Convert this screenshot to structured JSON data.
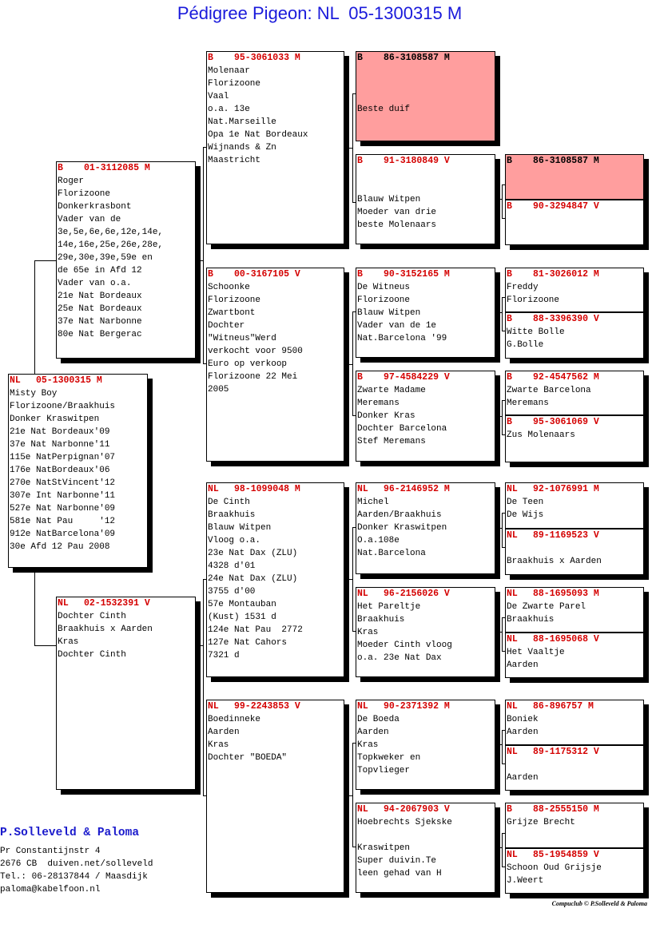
{
  "title": "Pédigree Pigeon: NL  05-1300315 M",
  "highlight_color": "#ff9e9e",
  "header_color": "#d40000",
  "pedigree": {
    "subject": {
      "country": "NL",
      "ring": "05-1300315",
      "sex": "M",
      "lines": [
        "Misty Boy",
        "Florizoone/Braakhuis",
        "Donker Kraswitpen",
        "21e Nat Bordeaux'09",
        "37e Nat Narbonne'11",
        "115e NatPerpignan'07",
        "176e NatBordeaux'06",
        "270e NatStVincent'12",
        "307e Int Narbonne'11",
        "527e Nat Narbonne'09",
        "581e Nat Pau     '12",
        "912e NatBarcelona'09",
        "30e Afd 12 Pau 2008"
      ]
    },
    "sire": {
      "country": "B",
      "ring": "01-3112085",
      "sex": "M",
      "lines": [
        "Roger",
        "Florizoone",
        "Donkerkrasbont",
        "Vader van de",
        "3e,5e,6e,6e,12e,14e,",
        "14e,16e,25e,26e,28e,",
        "29e,30e,39e,59e en",
        "de 65e in Afd 12",
        "Vader van o.a.",
        "21e Nat Bordeaux",
        "25e Nat Bordeaux",
        "37e Nat Narbonne",
        "80e Nat Bergerac"
      ]
    },
    "dam": {
      "country": "NL",
      "ring": "02-1532391",
      "sex": "V",
      "lines": [
        "Dochter Cinth",
        "Braakhuis x Aarden",
        "Kras",
        "Dochter Cinth"
      ]
    },
    "gen2": [
      {
        "country": "B",
        "ring": "95-3061033",
        "sex": "M",
        "lines": [
          "Molenaar",
          "Florizoone",
          "Vaal",
          "o.a. 13e",
          "Nat.Marseille",
          "Opa 1e Nat Bordeaux",
          "Wijnands & Zn",
          "Maastricht"
        ]
      },
      {
        "country": "B",
        "ring": "00-3167105",
        "sex": "V",
        "lines": [
          "Schoonke",
          "Florizoone",
          "Zwartbont",
          "Dochter",
          "\"Witneus\"Werd",
          "verkocht voor 9500",
          "Euro op verkoop",
          "Florizoone 22 Mei",
          "2005"
        ]
      },
      {
        "country": "NL",
        "ring": "98-1099048",
        "sex": "M",
        "lines": [
          "De Cinth",
          "Braakhuis",
          "Blauw Witpen",
          "Vloog o.a.",
          "23e Nat Dax (ZLU)",
          "4328 d'01",
          "24e Nat Dax (ZLU)",
          "3755 d'00",
          "57e Montauban",
          "(Kust) 1531 d",
          "124e Nat Pau  2772",
          "127e Nat Cahors",
          "7321 d"
        ]
      },
      {
        "country": "NL",
        "ring": "99-2243853",
        "sex": "V",
        "lines": [
          "Boedinneke",
          "Aarden",
          "Kras",
          "Dochter \"BOEDA\""
        ]
      }
    ],
    "gen3": [
      {
        "country": "B",
        "ring": "86-3108587",
        "sex": "M",
        "highlight": true,
        "lines": [
          "",
          "",
          "",
          "Beste duif"
        ]
      },
      {
        "country": "B",
        "ring": "91-3180849",
        "sex": "V",
        "lines": [
          "",
          "",
          "Blauw Witpen",
          "Moeder van drie",
          "beste Molenaars"
        ]
      },
      {
        "country": "B",
        "ring": "90-3152165",
        "sex": "M",
        "lines": [
          "De Witneus",
          "Florizoone",
          "Blauw Witpen",
          "Vader van de 1e",
          "Nat.Barcelona '99"
        ]
      },
      {
        "country": "B",
        "ring": "97-4584229",
        "sex": "V",
        "lines": [
          "Zwarte Madame",
          "Meremans",
          "Donker Kras",
          "Dochter Barcelona",
          "Stef Meremans"
        ]
      },
      {
        "country": "NL",
        "ring": "96-2146952",
        "sex": "M",
        "lines": [
          "Michel",
          "Aarden/Braakhuis",
          "Donker Kraswitpen",
          "O.a.108e",
          "Nat.Barcelona"
        ]
      },
      {
        "country": "NL",
        "ring": "96-2156026",
        "sex": "V",
        "lines": [
          "Het Pareltje",
          "Braakhuis",
          "Kras",
          "Moeder Cinth vloog",
          "o.a. 23e Nat Dax"
        ]
      },
      {
        "country": "NL",
        "ring": "90-2371392",
        "sex": "M",
        "lines": [
          "De Boeda",
          "Aarden",
          "Kras",
          "Topkweker en",
          "Topvlieger"
        ]
      },
      {
        "country": "NL",
        "ring": "94-2067903",
        "sex": "V",
        "lines": [
          "Hoebrechts Sjekske",
          "",
          "Kraswitpen",
          "Super duivin.Te",
          "leen gehad van H"
        ]
      }
    ],
    "gen4": [
      {
        "country": "B",
        "ring": "86-3108587",
        "sex": "M",
        "highlight": true,
        "lines": []
      },
      {
        "country": "B",
        "ring": "90-3294847",
        "sex": "V",
        "lines": []
      },
      {
        "country": "B",
        "ring": "81-3026012",
        "sex": "M",
        "lines": [
          "Freddy",
          "Florizoone"
        ]
      },
      {
        "country": "B",
        "ring": "88-3396390",
        "sex": "V",
        "lines": [
          "Witte Bolle",
          "G.Bolle"
        ]
      },
      {
        "country": "B",
        "ring": "92-4547562",
        "sex": "M",
        "lines": [
          "Zwarte Barcelona",
          "Meremans"
        ]
      },
      {
        "country": "B",
        "ring": "95-3061069",
        "sex": "V",
        "lines": [
          "Zus Molenaars"
        ]
      },
      {
        "country": "NL",
        "ring": "92-1076991",
        "sex": "M",
        "lines": [
          "De Teen",
          "De Wijs"
        ]
      },
      {
        "country": "NL",
        "ring": "89-1169523",
        "sex": "V",
        "lines": [
          "",
          "Braakhuis x Aarden"
        ]
      },
      {
        "country": "NL",
        "ring": "88-1695093",
        "sex": "M",
        "lines": [
          "De Zwarte Parel",
          "Braakhuis"
        ]
      },
      {
        "country": "NL",
        "ring": "88-1695068",
        "sex": "V",
        "lines": [
          "Het Vaaltje",
          "Aarden"
        ]
      },
      {
        "country": "NL",
        "ring": "86-896757",
        "sex": "M",
        "lines": [
          "Boniek",
          "Aarden"
        ]
      },
      {
        "country": "NL",
        "ring": "89-1175312",
        "sex": "V",
        "lines": [
          "",
          "Aarden"
        ]
      },
      {
        "country": "B",
        "ring": "88-2555150",
        "sex": "M",
        "lines": [
          "Grijze Brecht"
        ]
      },
      {
        "country": "NL",
        "ring": "85-1954859",
        "sex": "V",
        "lines": [
          "Schoon Oud Grijsje",
          "J.Weert"
        ]
      }
    ]
  },
  "footer": {
    "breeder": "P.Solleveld & Paloma",
    "address": [
      "Pr Constantijnstr 4",
      "2676 CB  duiven.net/solleveld",
      "Tel.: 06-28137844 / Maasdijk",
      "paloma@kabelfoon.nl"
    ],
    "credit": "Compuclub © P.Solleveld & Paloma"
  }
}
